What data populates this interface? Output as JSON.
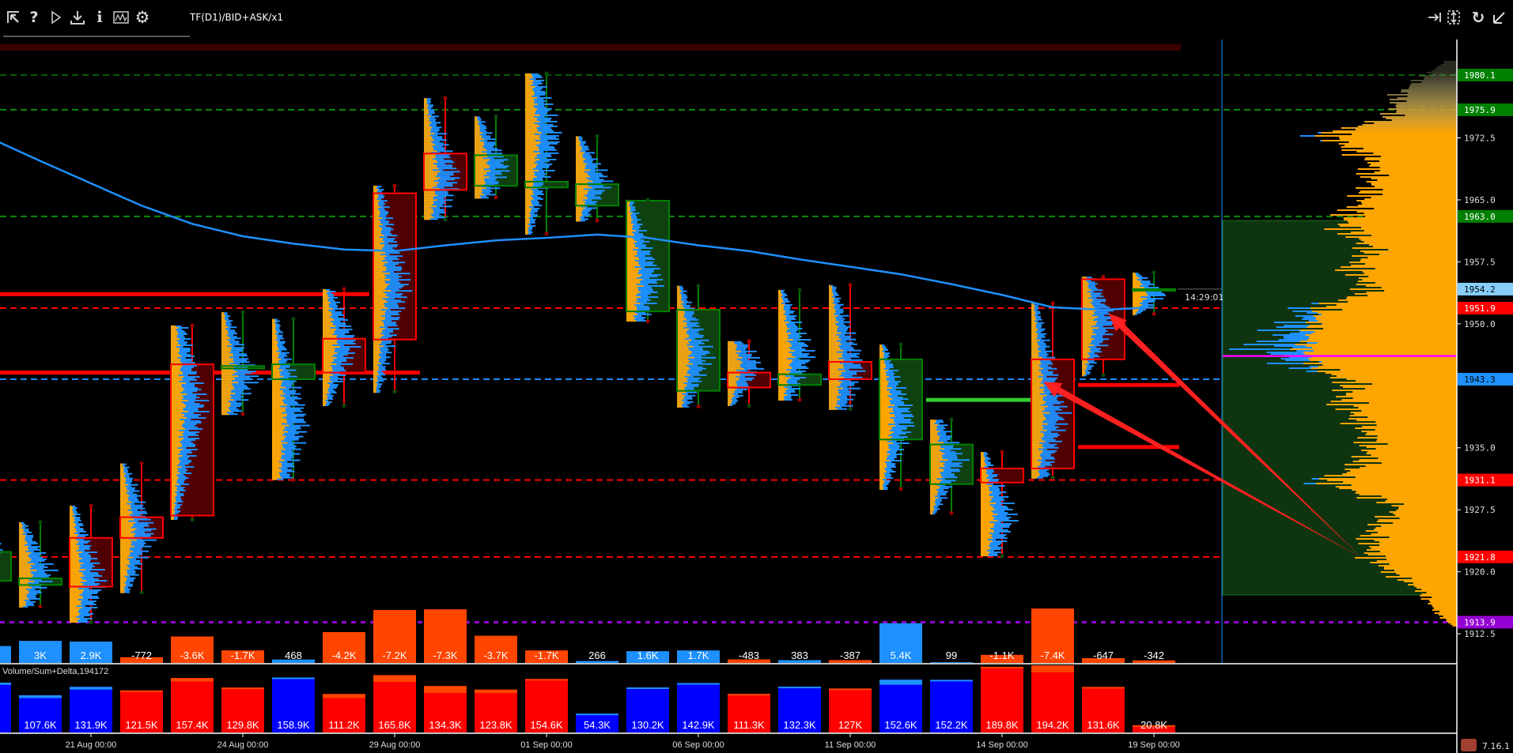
{
  "toolbar": {
    "title": "TF(D1)/BID+ASK/x1",
    "left_icons": [
      "cursor-arrow-icon",
      "help-icon",
      "play-icon",
      "download-icon",
      "info-icon",
      "chart-window-icon",
      "gear-icon"
    ],
    "right_icons": [
      "go-to-end-icon",
      "fit-vertical-icon",
      "refresh-icon",
      "collapse-icon"
    ]
  },
  "volume_pane_title": "Volume/Sum+Delta,194172",
  "clock_label": "14:29:01",
  "version": "7.16.1",
  "colors": {
    "background": "#000000",
    "bull": "#008000",
    "bull_fill": "#0f4010",
    "bear": "#ff0000",
    "bear_fill": "#500000",
    "ask_profile": "#ffa500",
    "bid_profile": "#1e90ff",
    "delta_pos": "#1e90ff",
    "delta_neg": "#ff4500",
    "vol_pos": "#0000ff",
    "vol_neg": "#ff0000",
    "ma": "#1e90ff",
    "poc": "#ff00ff"
  },
  "chart_data": {
    "type": "candlestick-footprint",
    "price_axis": {
      "ylim": [
        1911.5,
        1984.5
      ],
      "ticks": [
        "1972.5",
        "1965.0",
        "1957.5",
        "1950.0",
        "1935.0",
        "1927.5",
        "1920.0",
        "1912.5"
      ],
      "levels": [
        {
          "label": "1980.1",
          "price": 1980.1,
          "color": "#008000",
          "text": "#ffffff",
          "line": "#0a5a0a"
        },
        {
          "label": "1975.9",
          "price": 1975.9,
          "color": "#008000",
          "text": "#ffffff",
          "line": "#0d8a0d"
        },
        {
          "label": "1963.0",
          "price": 1963.0,
          "color": "#008000",
          "text": "#ffffff",
          "line": "#0d8a0d"
        },
        {
          "label": "1954.2",
          "price": 1954.2,
          "color": "#87cefa",
          "text": "#000000",
          "line": null
        },
        {
          "label": "1951.9",
          "price": 1951.9,
          "color": "#ff0000",
          "text": "#ffffff",
          "line": "#ff0000"
        },
        {
          "label": "1943.3",
          "price": 1943.3,
          "color": "#1e90ff",
          "text": "#000000",
          "line": "#1e90ff"
        },
        {
          "label": "1931.1",
          "price": 1931.1,
          "color": "#ff0000",
          "text": "#ffffff",
          "line": "#ff0000"
        },
        {
          "label": "1921.8",
          "price": 1921.8,
          "color": "#ff0000",
          "text": "#ffffff",
          "line": "#ff0000"
        },
        {
          "label": "1913.9",
          "price": 1913.9,
          "color": "#9400d3",
          "text": "#ffffff",
          "line": "#9400d3"
        }
      ]
    },
    "date_labels": [
      {
        "bar": 2,
        "label": "21 Aug 00:00"
      },
      {
        "bar": 5,
        "label": "24 Aug 00:00"
      },
      {
        "bar": 8,
        "label": "29 Aug 00:00"
      },
      {
        "bar": 11,
        "label": "01 Sep 00:00"
      },
      {
        "bar": 14,
        "label": "06 Sep 00:00"
      },
      {
        "bar": 17,
        "label": "11 Sep 00:00"
      },
      {
        "bar": 20,
        "label": "14 Sep 00:00"
      },
      {
        "bar": 23,
        "label": "19 Sep 00:00"
      }
    ],
    "candles": [
      {
        "o": 1918.9,
        "h": 1925.4,
        "l": 1918.7,
        "c": 1922.4
      },
      {
        "o": 1918.4,
        "h": 1926.0,
        "l": 1915.8,
        "c": 1919.2
      },
      {
        "o": 1924.1,
        "h": 1928.0,
        "l": 1913.9,
        "c": 1918.2
      },
      {
        "o": 1926.6,
        "h": 1933.1,
        "l": 1917.5,
        "c": 1924.1
      },
      {
        "o": 1945.1,
        "h": 1949.8,
        "l": 1926.3,
        "c": 1926.8
      },
      {
        "o": 1944.6,
        "h": 1951.4,
        "l": 1939.1,
        "c": 1944.9
      },
      {
        "o": 1943.3,
        "h": 1950.6,
        "l": 1931.1,
        "c": 1945.1
      },
      {
        "o": 1948.2,
        "h": 1954.2,
        "l": 1940.1,
        "c": 1944.1
      },
      {
        "o": 1965.8,
        "h": 1966.7,
        "l": 1941.8,
        "c": 1948.1
      },
      {
        "o": 1970.6,
        "h": 1977.3,
        "l": 1962.6,
        "c": 1966.2
      },
      {
        "o": 1966.7,
        "h": 1975.1,
        "l": 1965.3,
        "c": 1970.4
      },
      {
        "o": 1966.5,
        "h": 1980.3,
        "l": 1960.9,
        "c": 1967.2
      },
      {
        "o": 1964.3,
        "h": 1972.7,
        "l": 1962.5,
        "c": 1966.9
      },
      {
        "o": 1951.5,
        "h": 1965.0,
        "l": 1950.3,
        "c": 1964.9
      },
      {
        "o": 1941.9,
        "h": 1954.6,
        "l": 1940.0,
        "c": 1951.7
      },
      {
        "o": 1944.1,
        "h": 1947.9,
        "l": 1940.1,
        "c": 1942.3
      },
      {
        "o": 1942.6,
        "h": 1954.1,
        "l": 1940.8,
        "c": 1943.9
      },
      {
        "o": 1945.4,
        "h": 1954.7,
        "l": 1939.7,
        "c": 1943.3
      },
      {
        "o": 1936.0,
        "h": 1947.5,
        "l": 1930.0,
        "c": 1945.7
      },
      {
        "o": 1930.6,
        "h": 1938.4,
        "l": 1927.1,
        "c": 1935.4
      },
      {
        "o": 1932.5,
        "h": 1934.5,
        "l": 1921.9,
        "c": 1930.8
      },
      {
        "o": 1945.7,
        "h": 1952.5,
        "l": 1931.4,
        "c": 1932.5
      },
      {
        "o": 1955.4,
        "h": 1955.7,
        "l": 1943.8,
        "c": 1945.7
      },
      {
        "o": 1954.2,
        "h": 1956.2,
        "l": 1951.2,
        "c": 1954.2
      }
    ],
    "moving_average": [
      1972.5,
      1969.7,
      1967.0,
      1964.3,
      1962.1,
      1960.6,
      1959.7,
      1959.0,
      1958.8,
      1959.5,
      1960.1,
      1960.4,
      1960.8,
      1960.4,
      1959.5,
      1958.8,
      1957.8,
      1956.9,
      1956.0,
      1954.8,
      1953.5,
      1952.0,
      1951.7,
      1952.0
    ],
    "delta": {
      "values": [
        2.3,
        3.0,
        2.9,
        -0.772,
        -3.6,
        -1.7,
        0.468,
        -4.2,
        -7.2,
        -7.3,
        -3.7,
        -1.7,
        0.266,
        1.6,
        1.7,
        -0.483,
        0.383,
        -0.387,
        5.4,
        0.099,
        -1.1,
        -7.4,
        -0.647,
        -0.342
      ],
      "labels": [
        "",
        "3K",
        "2.9K",
        "-772",
        "-3.6K",
        "-1.7K",
        "468",
        "-4.2K",
        "-7.2K",
        "-7.3K",
        "-3.7K",
        "-1.7K",
        "266",
        "1.6K",
        "1.7K",
        "-483",
        "383",
        "-387",
        "5.4K",
        "99",
        "-1.1K",
        "-7.4K",
        "-647",
        "-342"
      ],
      "unit": "K"
    },
    "volume": {
      "values": [
        144,
        107.6,
        131.9,
        121.5,
        157.4,
        129.8,
        158.9,
        111.2,
        165.8,
        134.3,
        123.8,
        154.6,
        54.3,
        130.2,
        142.9,
        111.3,
        132.3,
        127,
        152.6,
        152.2,
        189.8,
        194.2,
        131.6,
        20.8
      ],
      "labels": [
        "K",
        "107.6K",
        "131.9K",
        "121.5K",
        "157.4K",
        "129.8K",
        "158.9K",
        "111.2K",
        "165.8K",
        "134.3K",
        "123.8K",
        "154.6K",
        "54.3K",
        "130.2K",
        "142.9K",
        "111.3K",
        "132.3K",
        "127K",
        "152.6K",
        "152.2K",
        "189.8K",
        "194.2K",
        "131.6K",
        "20.8K"
      ],
      "unit": "K"
    },
    "horizontal_segments": [
      {
        "price": 1953.6,
        "from_bar": 0,
        "to_bar": 7.5,
        "color": "#ff0000"
      },
      {
        "price": 1944.1,
        "from_bar": 0,
        "to_bar": 8.5,
        "color": "#ff0000"
      },
      {
        "price": 1940.8,
        "from_bar": 18.5,
        "to_bar": 20.7,
        "color": "#32cd32"
      },
      {
        "price": 1942.6,
        "from_bar": 21.5,
        "to_bar": 23.5,
        "color": "#ff0000"
      },
      {
        "price": 1935.1,
        "from_bar": 21.5,
        "to_bar": 23.5,
        "color": "#ff0000"
      }
    ],
    "composite_profile": {
      "value_area": [
        1917.2,
        1962.5
      ],
      "poc": 1946.1,
      "shape": [
        [
          1982,
          0.05
        ],
        [
          1978,
          0.3
        ],
        [
          1975,
          0.35
        ],
        [
          1973,
          0.7
        ],
        [
          1970,
          0.45
        ],
        [
          1967,
          0.45
        ],
        [
          1965,
          0.5
        ],
        [
          1962,
          0.6
        ],
        [
          1959,
          0.45
        ],
        [
          1957,
          0.55
        ],
        [
          1954,
          0.45
        ],
        [
          1952,
          0.75
        ],
        [
          1950,
          0.85
        ],
        [
          1947,
          1.0
        ],
        [
          1945,
          0.8
        ],
        [
          1943,
          0.55
        ],
        [
          1941,
          0.6
        ],
        [
          1938,
          0.5
        ],
        [
          1936,
          0.45
        ],
        [
          1933,
          0.5
        ],
        [
          1931,
          0.7
        ],
        [
          1928,
          0.3
        ],
        [
          1925,
          0.45
        ],
        [
          1922,
          0.45
        ],
        [
          1920,
          0.35
        ],
        [
          1918,
          0.2
        ],
        [
          1915,
          0.1
        ],
        [
          1913.5,
          0.02
        ]
      ]
    }
  }
}
